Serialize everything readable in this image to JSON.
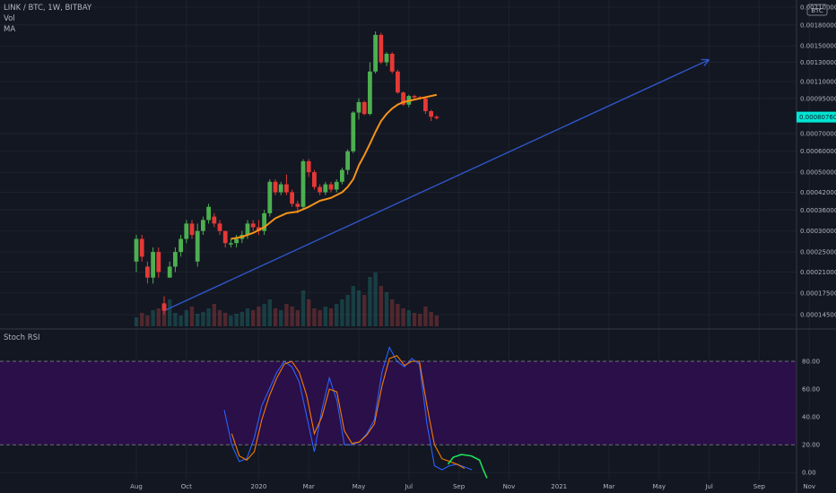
{
  "header": {
    "symbol_line": "LINK / BTC, 1W, BITBAY",
    "vol_label": "Vol",
    "ma_label": "MA",
    "btc_badge": "BTC",
    "rsi_label": "Stoch RSI"
  },
  "colors": {
    "background": "#131722",
    "up": "#26a69a",
    "down": "#ef5350",
    "candle_up": "#4caf50",
    "candle_down": "#e53935",
    "ma": "#f7931a",
    "trendline": "#2f56c9",
    "rsi_k": "#2962ff",
    "rsi_d": "#f57c00",
    "rsi_band": "#2a0f48",
    "annotation": "#19e05a",
    "price_badge": "#00e5d4"
  },
  "chart_data": [
    {
      "type": "candlestick",
      "title": "LINK / BTC, 1W, BITBAY",
      "price_scale": "log",
      "ylim": [
        0.00013,
        0.0022
      ],
      "y_ticks": [
        {
          "v": 0.0021,
          "label": "0.00210000"
        },
        {
          "v": 0.0018,
          "label": "0.00180000"
        },
        {
          "v": 0.0015,
          "label": "0.00150000"
        },
        {
          "v": 0.0013,
          "label": "0.00130000"
        },
        {
          "v": 0.0011,
          "label": "0.00110000"
        },
        {
          "v": 0.00095,
          "label": "0.00095000"
        },
        {
          "v": 0.0007,
          "label": "0.00070000"
        },
        {
          "v": 0.0006,
          "label": "0.00060000"
        },
        {
          "v": 0.0005,
          "label": "0.00050000"
        },
        {
          "v": 0.00042,
          "label": "0.00042000"
        },
        {
          "v": 0.00036,
          "label": "0.00036000"
        },
        {
          "v": 0.0003,
          "label": "0.00030000"
        },
        {
          "v": 0.00025,
          "label": "0.00025000"
        },
        {
          "v": 0.00021,
          "label": "0.00021000"
        },
        {
          "v": 0.000175,
          "label": "0.00017500"
        },
        {
          "v": 0.000145,
          "label": "0.00014500"
        }
      ],
      "last_price": {
        "v": 0.0008076,
        "label": "0.00080760"
      },
      "x_labels": [
        {
          "t": 0,
          "label": "Aug"
        },
        {
          "t": 9,
          "label": "Oct"
        },
        {
          "t": 22,
          "label": "2020"
        },
        {
          "t": 31,
          "label": "Mar"
        },
        {
          "t": 40,
          "label": "May"
        },
        {
          "t": 49,
          "label": "Jul"
        },
        {
          "t": 58,
          "label": "Sep"
        },
        {
          "t": 67,
          "label": "Nov"
        },
        {
          "t": 76,
          "label": "2021"
        },
        {
          "t": 85,
          "label": "Mar"
        },
        {
          "t": 94,
          "label": "May"
        },
        {
          "t": 103,
          "label": "Jul"
        },
        {
          "t": 112,
          "label": "Sep"
        },
        {
          "t": 121,
          "label": "Nov"
        }
      ],
      "candles": [
        [
          0.00023,
          0.00029,
          0.00021,
          0.00028
        ],
        [
          0.00028,
          0.00029,
          0.00023,
          0.00024
        ],
        [
          0.00022,
          0.00023,
          0.00019,
          0.0002
        ],
        [
          0.0002,
          0.00026,
          0.00019,
          0.00025
        ],
        [
          0.00025,
          0.00026,
          0.0002,
          0.00021
        ],
        [
          0.00016,
          0.00017,
          0.000145,
          0.00015
        ],
        [
          0.0002,
          0.00023,
          0.0002,
          0.00022
        ],
        [
          0.00022,
          0.00026,
          0.00021,
          0.00025
        ],
        [
          0.00025,
          0.00029,
          0.00024,
          0.00028
        ],
        [
          0.00028,
          0.00033,
          0.00027,
          0.00032
        ],
        [
          0.00032,
          0.00033,
          0.00028,
          0.00029
        ],
        [
          0.00023,
          0.00032,
          0.00022,
          0.0003
        ],
        [
          0.0003,
          0.00034,
          0.00029,
          0.00033
        ],
        [
          0.00033,
          0.00038,
          0.00032,
          0.00037
        ],
        [
          0.00034,
          0.00035,
          0.00031,
          0.00032
        ],
        [
          0.00032,
          0.00033,
          0.00029,
          0.0003
        ],
        [
          0.0003,
          0.0003,
          0.00026,
          0.00027
        ],
        [
          0.00027,
          0.00028,
          0.00026,
          0.00027
        ],
        [
          0.00027,
          0.00029,
          0.00026,
          0.00028
        ],
        [
          0.00028,
          0.0003,
          0.00027,
          0.00029
        ],
        [
          0.00029,
          0.00033,
          0.00028,
          0.00032
        ],
        [
          0.00032,
          0.00033,
          0.0003,
          0.00031
        ],
        [
          0.00031,
          0.00033,
          0.00029,
          0.0003
        ],
        [
          0.0003,
          0.00036,
          0.00029,
          0.00035
        ],
        [
          0.00035,
          0.00047,
          0.00034,
          0.00046
        ],
        [
          0.00046,
          0.00047,
          0.00041,
          0.00042
        ],
        [
          0.00042,
          0.00046,
          0.00041,
          0.00045
        ],
        [
          0.00045,
          0.00049,
          0.00041,
          0.00042
        ],
        [
          0.00042,
          0.00043,
          0.00037,
          0.00038
        ],
        [
          0.00038,
          0.00039,
          0.00035,
          0.00037
        ],
        [
          0.00037,
          0.00056,
          0.00036,
          0.00055
        ],
        [
          0.00055,
          0.00056,
          0.00048,
          0.0005
        ],
        [
          0.0005,
          0.00051,
          0.00043,
          0.00044
        ],
        [
          0.00044,
          0.00045,
          0.00041,
          0.00042
        ],
        [
          0.00042,
          0.00046,
          0.00041,
          0.00045
        ],
        [
          0.00045,
          0.00046,
          0.00042,
          0.00043
        ],
        [
          0.00043,
          0.00047,
          0.00042,
          0.00046
        ],
        [
          0.00046,
          0.00052,
          0.00045,
          0.00051
        ],
        [
          0.00051,
          0.00061,
          0.00049,
          0.0006
        ],
        [
          0.0006,
          0.00085,
          0.00059,
          0.00084
        ],
        [
          0.00084,
          0.00095,
          0.00079,
          0.00092
        ],
        [
          0.00092,
          0.00093,
          0.00082,
          0.00083
        ],
        [
          0.00083,
          0.0013,
          0.00082,
          0.0012
        ],
        [
          0.0012,
          0.0017,
          0.00118,
          0.00165
        ],
        [
          0.00165,
          0.00168,
          0.00128,
          0.0013
        ],
        [
          0.0013,
          0.00142,
          0.00126,
          0.0014
        ],
        [
          0.0014,
          0.00142,
          0.00118,
          0.0012
        ],
        [
          0.0012,
          0.00122,
          0.00099,
          0.001
        ],
        [
          0.001,
          0.00101,
          0.00089,
          0.0009
        ],
        [
          0.0009,
          0.00098,
          0.00088,
          0.00097
        ],
        [
          0.00097,
          0.00098,
          0.00094,
          0.00096
        ],
        [
          0.00096,
          0.00097,
          0.00094,
          0.00095
        ],
        [
          0.00095,
          0.00096,
          0.00083,
          0.00085
        ],
        [
          0.00085,
          0.00086,
          0.00078,
          0.00081
        ],
        [
          0.00081,
          0.00082,
          0.00079,
          0.0008076
        ]
      ],
      "moving_average": {
        "name": "MA",
        "points": [
          [
            17,
            0.00028
          ],
          [
            19,
            0.000285
          ],
          [
            21,
            0.000295
          ],
          [
            23,
            0.00031
          ],
          [
            25,
            0.000335
          ],
          [
            27,
            0.00035
          ],
          [
            29,
            0.000355
          ],
          [
            31,
            0.00037
          ],
          [
            33,
            0.00039
          ],
          [
            35,
            0.0004
          ],
          [
            37,
            0.00042
          ],
          [
            38,
            0.00044
          ],
          [
            39,
            0.00047
          ],
          [
            40,
            0.00053
          ],
          [
            41,
            0.00058
          ],
          [
            42,
            0.00064
          ],
          [
            43,
            0.00071
          ],
          [
            44,
            0.00078
          ],
          [
            45,
            0.00083
          ],
          [
            46,
            0.00087
          ],
          [
            47,
            0.0009
          ],
          [
            48,
            0.00092
          ],
          [
            50,
            0.00094
          ],
          [
            52,
            0.00096
          ],
          [
            54,
            0.00098
          ]
        ]
      },
      "trendline": {
        "from": [
          5,
          0.00015
        ],
        "to": [
          103,
          0.00133
        ]
      },
      "volume": [
        10,
        15,
        12,
        18,
        20,
        25,
        30,
        15,
        12,
        18,
        22,
        14,
        16,
        20,
        25,
        18,
        15,
        12,
        14,
        16,
        20,
        18,
        22,
        25,
        30,
        20,
        18,
        25,
        22,
        18,
        40,
        30,
        20,
        18,
        22,
        20,
        25,
        30,
        35,
        45,
        40,
        35,
        55,
        60,
        45,
        38,
        30,
        25,
        20,
        18,
        15,
        14,
        22,
        16,
        12
      ]
    },
    {
      "type": "line",
      "title": "Stoch RSI",
      "ylim": [
        -5,
        100
      ],
      "bands": [
        20,
        80
      ],
      "y_ticks": [
        {
          "v": 80,
          "label": "80.00"
        },
        {
          "v": 60,
          "label": "60.00"
        },
        {
          "v": 40,
          "label": "40.00"
        },
        {
          "v": 20,
          "label": "20.00"
        },
        {
          "v": 0,
          "label": "0.00"
        }
      ],
      "series": [
        {
          "key": "k",
          "points": [
            [
              11,
              45
            ],
            [
              12,
              20
            ],
            [
              13,
              8
            ],
            [
              14,
              10
            ],
            [
              15,
              25
            ],
            [
              16,
              48
            ],
            [
              17,
              60
            ],
            [
              18,
              72
            ],
            [
              19,
              80
            ],
            [
              20,
              76
            ],
            [
              21,
              65
            ],
            [
              22,
              40
            ],
            [
              23,
              15
            ],
            [
              24,
              45
            ],
            [
              25,
              68
            ],
            [
              26,
              52
            ],
            [
              27,
              20
            ],
            [
              28,
              20
            ],
            [
              29,
              22
            ],
            [
              30,
              28
            ],
            [
              31,
              38
            ],
            [
              32,
              72
            ],
            [
              33,
              90
            ],
            [
              34,
              80
            ],
            [
              35,
              76
            ],
            [
              36,
              82
            ],
            [
              37,
              78
            ],
            [
              38,
              35
            ],
            [
              39,
              5
            ],
            [
              40,
              2
            ],
            [
              41,
              5
            ],
            [
              42,
              6
            ],
            [
              43,
              4
            ],
            [
              44,
              2
            ]
          ]
        },
        {
          "key": "d",
          "points": [
            [
              12,
              28
            ],
            [
              13,
              12
            ],
            [
              14,
              9
            ],
            [
              15,
              15
            ],
            [
              16,
              38
            ],
            [
              17,
              55
            ],
            [
              18,
              68
            ],
            [
              19,
              78
            ],
            [
              20,
              80
            ],
            [
              21,
              72
            ],
            [
              22,
              55
            ],
            [
              23,
              28
            ],
            [
              24,
              40
            ],
            [
              25,
              60
            ],
            [
              26,
              58
            ],
            [
              27,
              30
            ],
            [
              28,
              21
            ],
            [
              29,
              22
            ],
            [
              30,
              27
            ],
            [
              31,
              35
            ],
            [
              32,
              62
            ],
            [
              33,
              82
            ],
            [
              34,
              84
            ],
            [
              35,
              77
            ],
            [
              36,
              80
            ],
            [
              37,
              80
            ],
            [
              38,
              48
            ],
            [
              39,
              20
            ],
            [
              40,
              10
            ],
            [
              41,
              8
            ],
            [
              42,
              6
            ],
            [
              43,
              3
            ]
          ]
        }
      ],
      "annotation_stroke": [
        [
          40.8,
          6
        ],
        [
          41.5,
          11
        ],
        [
          42.6,
          13
        ],
        [
          43.9,
          12
        ],
        [
          45.0,
          9
        ],
        [
          45.5,
          2
        ],
        [
          46.0,
          -4
        ]
      ]
    }
  ]
}
